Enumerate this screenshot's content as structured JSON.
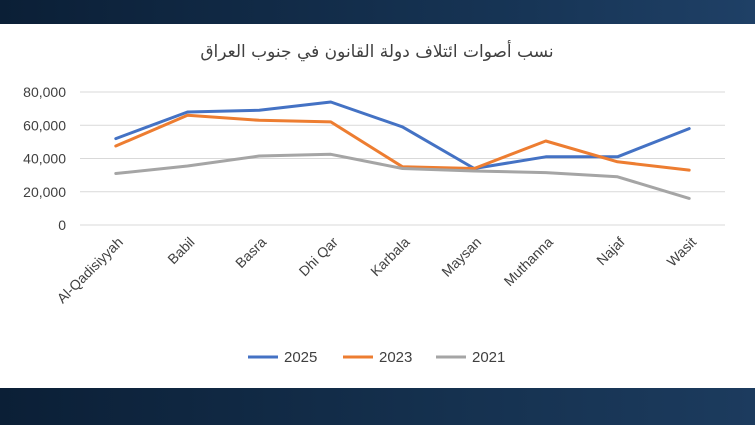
{
  "chart_data": {
    "type": "line",
    "title": "نسب أصوات ائتلاف دولة القانون في جنوب العراق",
    "categories": [
      "Al-Qadisiyyah",
      "Babil",
      "Basra",
      "Dhi Qar",
      "Karbala",
      "Maysan",
      "Muthanna",
      "Najaf",
      "Wasit"
    ],
    "series": [
      {
        "name": "2025",
        "color": "#4472C4",
        "values": [
          52000,
          68000,
          69000,
          74000,
          59000,
          34000,
          41000,
          41000,
          58000
        ]
      },
      {
        "name": "2023",
        "color": "#ED7D31",
        "values": [
          47500,
          66000,
          63000,
          62000,
          35000,
          34000,
          50500,
          38000,
          33000
        ]
      },
      {
        "name": "2021",
        "color": "#A5A5A5",
        "values": [
          31000,
          35500,
          41500,
          42500,
          34000,
          32500,
          31500,
          29000,
          16000
        ]
      }
    ],
    "ylim": [
      0,
      80000
    ],
    "yticks": [
      "80,000",
      "60,000",
      "40,000",
      "20,000",
      "0"
    ],
    "ytick_values": [
      80000,
      60000,
      40000,
      20000,
      0
    ],
    "xlabel": "",
    "ylabel": "",
    "legend_position": "bottom",
    "grid": true
  }
}
